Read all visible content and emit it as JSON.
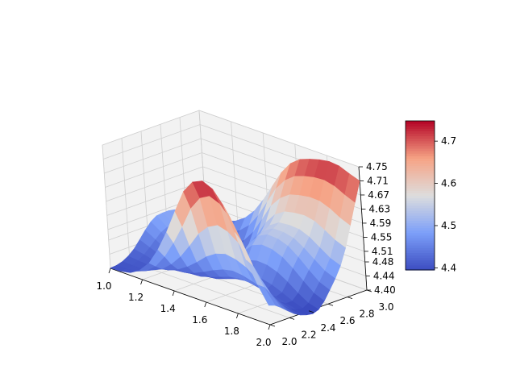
{
  "chart_data": {
    "type": "surface",
    "title": "",
    "xlabel": "",
    "ylabel": "",
    "zlabel": "",
    "xlim": [
      1.0,
      2.0
    ],
    "ylim": [
      2.0,
      3.0
    ],
    "zlim": [
      4.4,
      4.75
    ],
    "x_ticks": [
      "1.0",
      "1.2",
      "1.4",
      "1.6",
      "1.8",
      "2.0"
    ],
    "y_ticks": [
      "2.0",
      "2.2",
      "2.4",
      "2.6",
      "2.8",
      "3.0"
    ],
    "z_ticks": [
      "4.40",
      "4.44",
      "4.48",
      "4.51",
      "4.55",
      "4.59",
      "4.63",
      "4.67",
      "4.71",
      "4.75"
    ],
    "x": [
      1.0,
      1.0625,
      1.125,
      1.1875,
      1.25,
      1.3125,
      1.375,
      1.4375,
      1.5,
      1.5625,
      1.625,
      1.6875,
      1.75,
      1.8125,
      1.875,
      1.9375,
      2.0
    ],
    "y": [
      2.0,
      2.0625,
      2.125,
      2.1875,
      2.25,
      2.3125,
      2.375,
      2.4375,
      2.5,
      2.5625,
      2.625,
      2.6875,
      2.75,
      2.8125,
      2.875,
      2.9375,
      3.0
    ],
    "z": [
      [
        4.401,
        4.402,
        4.407,
        4.416,
        4.43,
        4.45,
        4.471,
        4.489,
        4.5,
        4.502,
        4.502,
        4.499,
        4.487,
        4.463,
        4.442,
        4.433,
        4.447
      ],
      [
        4.402,
        4.403,
        4.406,
        4.413,
        4.424,
        4.438,
        4.454,
        4.469,
        4.477,
        4.481,
        4.483,
        4.478,
        4.464,
        4.444,
        4.434,
        4.432,
        4.45
      ],
      [
        4.408,
        4.406,
        4.406,
        4.411,
        4.417,
        4.426,
        4.437,
        4.447,
        4.452,
        4.456,
        4.458,
        4.452,
        4.438,
        4.425,
        4.426,
        4.434,
        4.456
      ],
      [
        4.425,
        4.417,
        4.413,
        4.412,
        4.412,
        4.416,
        4.422,
        4.425,
        4.428,
        4.43,
        4.43,
        4.424,
        4.414,
        4.41,
        4.423,
        4.441,
        4.466
      ],
      [
        4.455,
        4.44,
        4.426,
        4.417,
        4.411,
        4.409,
        4.41,
        4.41,
        4.409,
        4.408,
        4.407,
        4.404,
        4.4,
        4.405,
        4.426,
        4.455,
        4.485
      ],
      [
        4.503,
        4.478,
        4.45,
        4.429,
        4.414,
        4.405,
        4.402,
        4.401,
        4.4,
        4.4,
        4.4,
        4.4,
        4.402,
        4.414,
        4.443,
        4.48,
        4.515
      ],
      [
        4.563,
        4.527,
        4.482,
        4.447,
        4.423,
        4.407,
        4.4,
        4.4,
        4.404,
        4.408,
        4.411,
        4.416,
        4.423,
        4.442,
        4.477,
        4.518,
        4.557
      ],
      [
        4.632,
        4.583,
        4.523,
        4.47,
        4.436,
        4.415,
        4.404,
        4.405,
        4.418,
        4.433,
        4.442,
        4.45,
        4.459,
        4.484,
        4.523,
        4.566,
        4.605
      ],
      [
        4.698,
        4.645,
        4.567,
        4.496,
        4.451,
        4.426,
        4.414,
        4.42,
        4.443,
        4.471,
        4.486,
        4.494,
        4.504,
        4.53,
        4.571,
        4.614,
        4.653
      ],
      [
        4.735,
        4.684,
        4.596,
        4.514,
        4.463,
        4.436,
        4.424,
        4.433,
        4.464,
        4.5,
        4.52,
        4.529,
        4.538,
        4.563,
        4.603,
        4.648,
        4.689
      ],
      [
        4.748,
        4.7,
        4.611,
        4.523,
        4.469,
        4.441,
        4.428,
        4.438,
        4.472,
        4.511,
        4.534,
        4.545,
        4.556,
        4.581,
        4.623,
        4.669,
        4.711
      ],
      [
        4.735,
        4.688,
        4.603,
        4.518,
        4.466,
        4.439,
        4.428,
        4.437,
        4.47,
        4.508,
        4.532,
        4.545,
        4.559,
        4.587,
        4.631,
        4.679,
        4.722
      ],
      [
        4.698,
        4.656,
        4.582,
        4.506,
        4.458,
        4.433,
        4.422,
        4.43,
        4.46,
        4.496,
        4.522,
        4.538,
        4.557,
        4.59,
        4.636,
        4.686,
        4.73
      ],
      [
        4.632,
        4.6,
        4.543,
        4.485,
        4.446,
        4.424,
        4.413,
        4.418,
        4.442,
        4.474,
        4.5,
        4.52,
        4.545,
        4.584,
        4.635,
        4.688,
        4.735
      ],
      [
        4.563,
        4.541,
        4.501,
        4.461,
        4.432,
        4.414,
        4.404,
        4.404,
        4.42,
        4.448,
        4.473,
        4.497,
        4.525,
        4.568,
        4.624,
        4.681,
        4.732
      ],
      [
        4.503,
        4.49,
        4.466,
        4.439,
        4.418,
        4.404,
        4.396,
        4.393,
        4.402,
        4.424,
        4.449,
        4.475,
        4.505,
        4.55,
        4.607,
        4.666,
        4.72
      ],
      [
        4.455,
        4.449,
        4.436,
        4.421,
        4.407,
        4.397,
        4.391,
        4.388,
        4.394,
        4.412,
        4.437,
        4.463,
        4.494,
        4.538,
        4.595,
        4.654,
        4.71
      ]
    ],
    "colorbar": {
      "ticks": [
        "4.4",
        "4.5",
        "4.6",
        "4.7"
      ],
      "range": [
        4.395,
        4.748
      ],
      "colormap": "coolwarm",
      "low_color": "#3b4cc0",
      "mid_color": "#dddddd",
      "high_color": "#b40426"
    },
    "pane_color": "#f2f2f2",
    "grid": true
  }
}
